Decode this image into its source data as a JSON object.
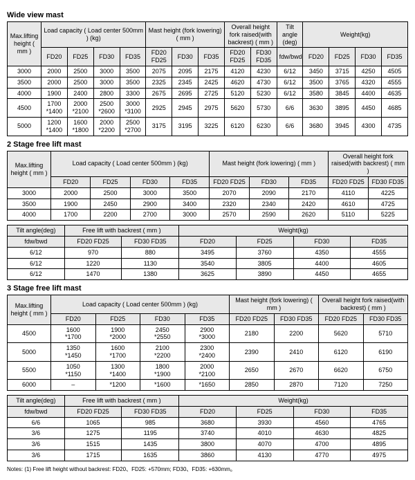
{
  "sections": {
    "wide_view": {
      "title": "Wide view mast"
    },
    "two_stage": {
      "title": "2 Stage free lift mast"
    },
    "three_stage": {
      "title": "3 Stage free lift mast"
    }
  },
  "headers": {
    "max_lift_height": "Max.lifting height ( mm )",
    "load_capacity": "Load capacity ( Load center 500mm ) (kg)",
    "mast_height_lowering": "Mast height (fork lowering) ( mm )",
    "mast_height_lowering2": "Mast height (fork lowering) ( mm )",
    "overall_height_raised": "Overall height fork raised(with backrest) ( mm )",
    "overall_height_raised2": "Overall height fork raised(with backrest) ( mm )",
    "overall_height_raised3": "Overall height fork raised(with backrest) ( mm )",
    "tilt_angle": "Tilt angle (deg)",
    "tilt_angle_deg": "Tilt angle(deg)",
    "weight": "Weight(kg)",
    "free_lift_backrest": "Free lift with backrest ( mm )",
    "fdw_bwd": "fdw/bwd",
    "FD20": "FD20",
    "FD25": "FD25",
    "FD30": "FD30",
    "FD35": "FD35",
    "FD20_FD25": "FD20 FD25",
    "FD30_FD35": "FD30 FD35"
  },
  "wide_view_rows": [
    [
      "3000",
      "2000",
      "2500",
      "3000",
      "3500",
      "2075",
      "2095",
      "2175",
      "4120",
      "4230",
      "6/12",
      "3450",
      "3715",
      "4250",
      "4505"
    ],
    [
      "3500",
      "2000",
      "2500",
      "3000",
      "3500",
      "2325",
      "2345",
      "2425",
      "4620",
      "4730",
      "6/12",
      "3500",
      "3765",
      "4320",
      "4555"
    ],
    [
      "4000",
      "1900",
      "2400",
      "2800",
      "3300",
      "2675",
      "2695",
      "2725",
      "5120",
      "5230",
      "6/12",
      "3580",
      "3845",
      "4400",
      "4635"
    ],
    [
      "4500",
      "1700 *1400",
      "2000 *2100",
      "2500 *2600",
      "3000 *3100",
      "2925",
      "2945",
      "2975",
      "5620",
      "5730",
      "6/6",
      "3630",
      "3895",
      "4450",
      "4685"
    ],
    [
      "5000",
      "1200 *1400",
      "1600 *1800",
      "2000 *2200",
      "2500 *2700",
      "3175",
      "3195",
      "3225",
      "6120",
      "6230",
      "6/6",
      "3680",
      "3945",
      "4300",
      "4735"
    ]
  ],
  "two_stage_a": [
    [
      "3000",
      "2000",
      "2500",
      "3000",
      "3500",
      "2070",
      "2090",
      "2170",
      "4110",
      "4225"
    ],
    [
      "3500",
      "1900",
      "2450",
      "2900",
      "3400",
      "2320",
      "2340",
      "2420",
      "4610",
      "4725"
    ],
    [
      "4000",
      "1700",
      "2200",
      "2700",
      "3000",
      "2570",
      "2590",
      "2620",
      "5110",
      "5225"
    ]
  ],
  "two_stage_b": [
    [
      "6/12",
      "970",
      "880",
      "3495",
      "3760",
      "4350",
      "4555"
    ],
    [
      "6/12",
      "1220",
      "1130",
      "3540",
      "3805",
      "4400",
      "4605"
    ],
    [
      "6/12",
      "1470",
      "1380",
      "3625",
      "3890",
      "4450",
      "4655"
    ]
  ],
  "three_stage_a": [
    [
      "4500",
      "1600 *1700",
      "1900 *2000",
      "2450 *2550",
      "2900 *3000",
      "2180",
      "2200",
      "5620",
      "5710"
    ],
    [
      "5000",
      "1350 *1450",
      "1600 *1700",
      "2100 *2200",
      "2300 *2400",
      "2390",
      "2410",
      "6120",
      "6190"
    ],
    [
      "5500",
      "1050 *1150",
      "1300 *1400",
      "1800 *1900",
      "2000 *2100",
      "2650",
      "2670",
      "6620",
      "6750"
    ],
    [
      "6000",
      "–",
      "*1200",
      "*1600",
      "*1650",
      "2850",
      "2870",
      "7120",
      "7250"
    ]
  ],
  "three_stage_b": [
    [
      "6/6",
      "1065",
      "985",
      "3680",
      "3930",
      "4560",
      "4765"
    ],
    [
      "3/6",
      "1275",
      "1195",
      "3740",
      "4010",
      "4630",
      "4825"
    ],
    [
      "3/6",
      "1515",
      "1435",
      "3800",
      "4070",
      "4700",
      "4895"
    ],
    [
      "3/6",
      "1715",
      "1635",
      "3860",
      "4130",
      "4770",
      "4975"
    ]
  ],
  "notes": "Notes: (1)  Free lift height without backrest:   FD20、FD25: +570mm;   FD30、FD35: +630mm。"
}
